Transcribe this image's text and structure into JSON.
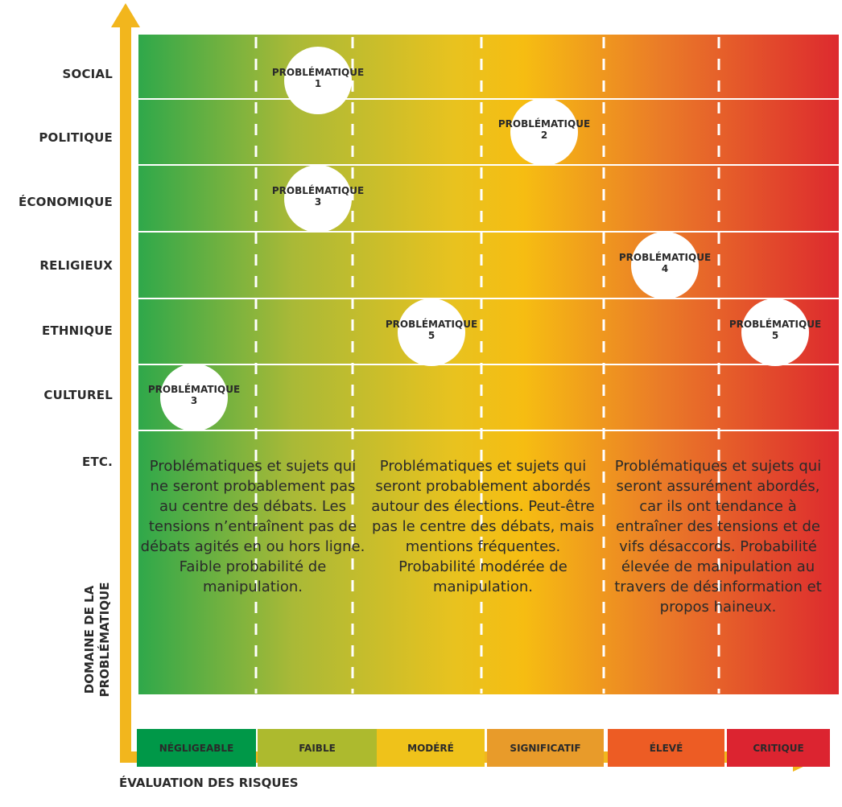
{
  "y_axis": {
    "title_lines": [
      "DOMAINE DE LA",
      "PROBLÉMATIQUE"
    ],
    "rows": [
      "SOCIAL",
      "POLITIQUE",
      "ÉCONOMIQUE",
      "RELIGIEUX",
      "ETHNIQUE",
      "CULTUREL",
      "ETC."
    ]
  },
  "x_axis": {
    "title": "ÉVALUATION DES RISQUES"
  },
  "bubbles": [
    {
      "word": "PROBLÉMATIQUE",
      "number": "1",
      "row": "SOCIAL"
    },
    {
      "word": "PROBLÉMATIQUE",
      "number": "2",
      "row": "POLITIQUE"
    },
    {
      "word": "PROBLÉMATIQUE",
      "number": "3",
      "row": "ÉCONOMIQUE"
    },
    {
      "word": "PROBLÉMATIQUE",
      "number": "4",
      "row": "RELIGIEUX"
    },
    {
      "word": "PROBLÉMATIQUE",
      "number": "5",
      "row": "ETHNIQUE"
    },
    {
      "word": "PROBLÉMATIQUE",
      "number": "5",
      "row": "ETHNIQUE"
    },
    {
      "word": "PROBLÉMATIQUE",
      "number": "3",
      "row": "CULTUREL"
    }
  ],
  "zones": [
    {
      "text": "Problématiques et sujets qui ne seront probablement pas au centre des débats. Les tensions n’entraînent pas de débats agités en ou hors ligne. Faible probabilité de manipulation."
    },
    {
      "text": "Problématiques et sujets qui seront probablement abordés autour des élections. Peut-être pas le centre des débats, mais mentions fréquentes. Probabilité modérée de manipulation."
    },
    {
      "text": "Problématiques et sujets qui seront assurément abordés, car ils ont tendance à entraîner des tensions et de vifs désaccords. Probabilité élevée de manipulation au travers de désinformation et propos haineux."
    }
  ],
  "legend": [
    {
      "label": "NÉGLIGEABLE",
      "color": "#009848"
    },
    {
      "label": "FAIBLE",
      "color": "#adba2e"
    },
    {
      "label": "MODÉRÉ",
      "color": "#efc21a"
    },
    {
      "label": "SIGNIFICATIF",
      "color": "#e89b2a"
    },
    {
      "label": "ÉLEVÉ",
      "color": "#ed5c24"
    },
    {
      "label": "CRITIQUE",
      "color": "#dc2430"
    }
  ],
  "colors": {
    "axis": "#f2b61d",
    "gradient": [
      "#2fa84a",
      "#a9b937",
      "#e8c21f",
      "#f6bd12",
      "#ea7a28",
      "#dd2a2e"
    ],
    "text": "#2a2a2a"
  }
}
